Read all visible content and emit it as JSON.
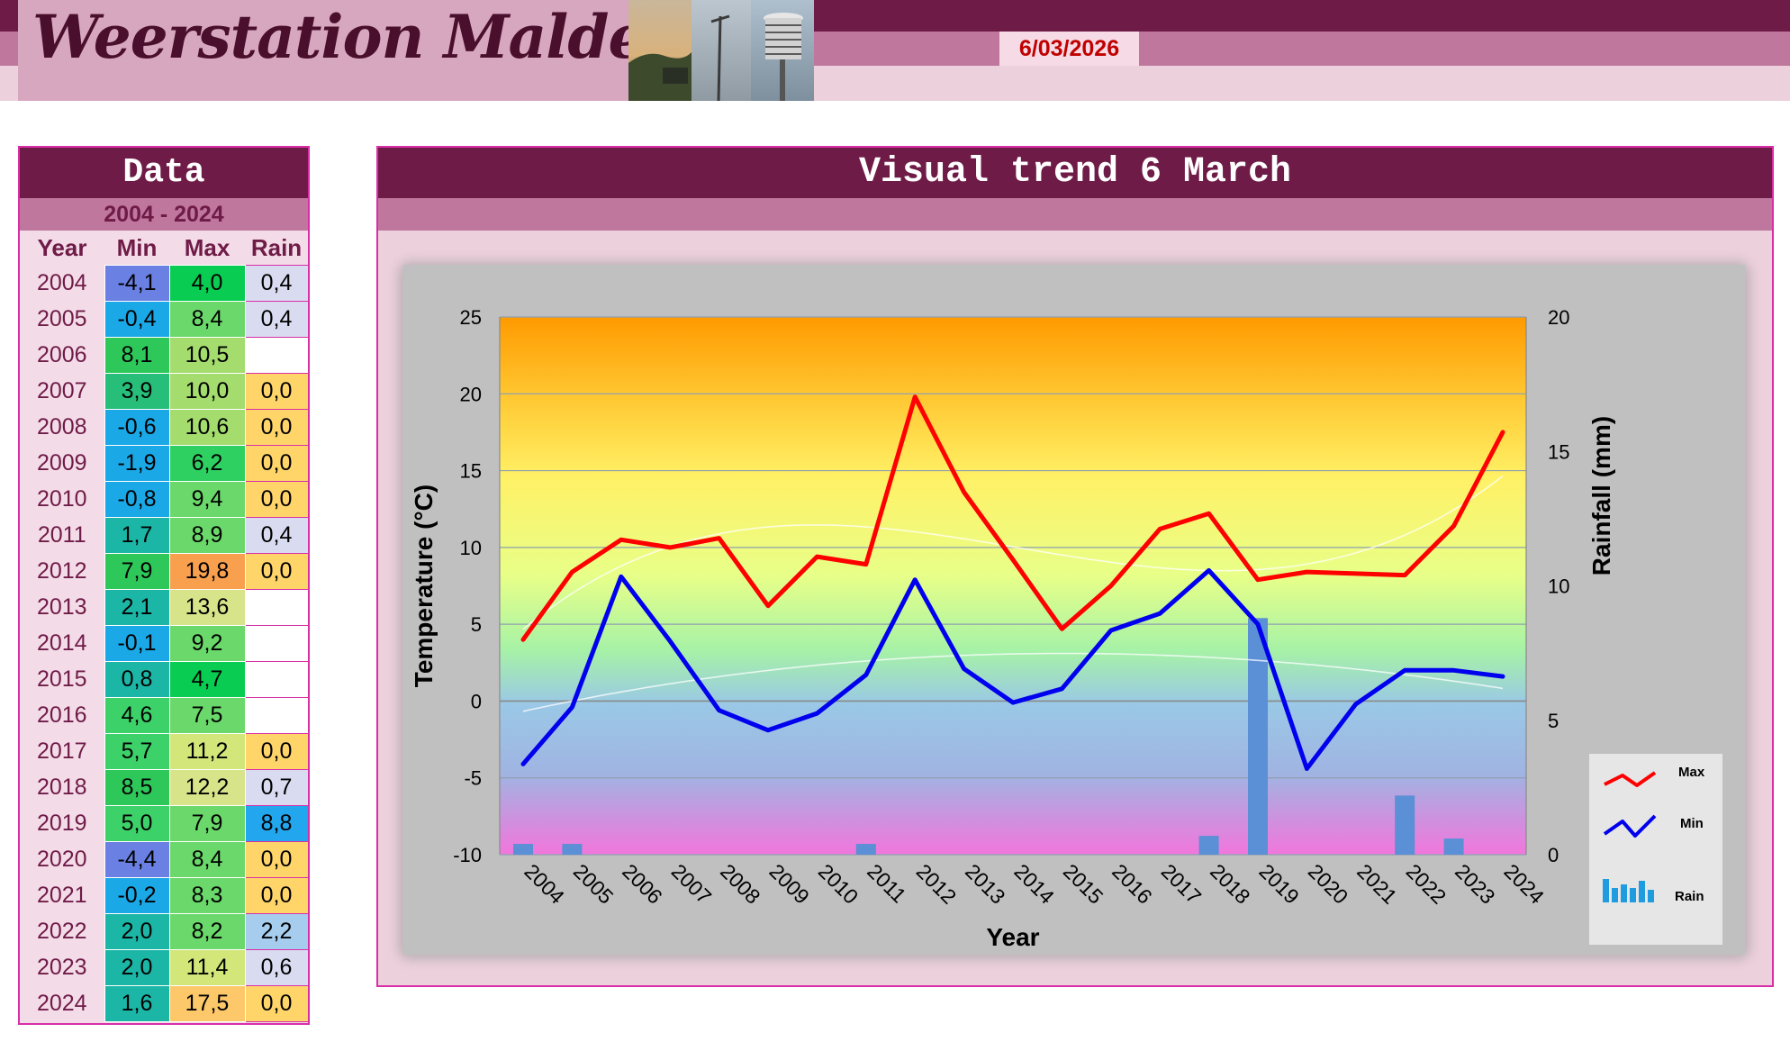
{
  "header": {
    "site_title": "Weerstation Malderen",
    "date": "6/03/2026",
    "photo_alt": "weather-station-photo"
  },
  "data_table": {
    "title": "Data",
    "range": "2004 - 2024",
    "columns": [
      "Year",
      "Min",
      "Max",
      "Rain"
    ],
    "rows": [
      {
        "year": "2004",
        "min": "-4,1",
        "max": "4,0",
        "rain": "0,4"
      },
      {
        "year": "2005",
        "min": "-0,4",
        "max": "8,4",
        "rain": "0,4"
      },
      {
        "year": "2006",
        "min": "8,1",
        "max": "10,5",
        "rain": ""
      },
      {
        "year": "2007",
        "min": "3,9",
        "max": "10,0",
        "rain": "0,0"
      },
      {
        "year": "2008",
        "min": "-0,6",
        "max": "10,6",
        "rain": "0,0"
      },
      {
        "year": "2009",
        "min": "-1,9",
        "max": "6,2",
        "rain": "0,0"
      },
      {
        "year": "2010",
        "min": "-0,8",
        "max": "9,4",
        "rain": "0,0"
      },
      {
        "year": "2011",
        "min": "1,7",
        "max": "8,9",
        "rain": "0,4"
      },
      {
        "year": "2012",
        "min": "7,9",
        "max": "19,8",
        "rain": "0,0"
      },
      {
        "year": "2013",
        "min": "2,1",
        "max": "13,6",
        "rain": ""
      },
      {
        "year": "2014",
        "min": "-0,1",
        "max": "9,2",
        "rain": ""
      },
      {
        "year": "2015",
        "min": "0,8",
        "max": "4,7",
        "rain": ""
      },
      {
        "year": "2016",
        "min": "4,6",
        "max": "7,5",
        "rain": ""
      },
      {
        "year": "2017",
        "min": "5,7",
        "max": "11,2",
        "rain": "0,0"
      },
      {
        "year": "2018",
        "min": "8,5",
        "max": "12,2",
        "rain": "0,7"
      },
      {
        "year": "2019",
        "min": "5,0",
        "max": "7,9",
        "rain": "8,8"
      },
      {
        "year": "2020",
        "min": "-4,4",
        "max": "8,4",
        "rain": "0,0"
      },
      {
        "year": "2021",
        "min": "-0,2",
        "max": "8,3",
        "rain": "0,0"
      },
      {
        "year": "2022",
        "min": "2,0",
        "max": "8,2",
        "rain": "2,2"
      },
      {
        "year": "2023",
        "min": "2,0",
        "max": "11,4",
        "rain": "0,6"
      },
      {
        "year": "2024",
        "min": "1,6",
        "max": "17,5",
        "rain": "0,0"
      }
    ]
  },
  "colors": {
    "header_dark": "#6f1b47",
    "header_mid": "#c0779d",
    "header_light": "#ecd0dc",
    "max_line": "#ff0000",
    "min_line": "#0000ee",
    "rain_bar": "#5b8fd6",
    "border": "#d82fa8"
  },
  "chart_data": {
    "type": "line",
    "title": "Visual trend 6 March",
    "xlabel": "Year",
    "ylabel": "Temperature (°C)",
    "y2label": "Rainfall (mm)",
    "ylim": [
      -10,
      25
    ],
    "y2lim": [
      0,
      20
    ],
    "yticks": [
      -10,
      -5,
      0,
      5,
      10,
      15,
      20,
      25
    ],
    "y2ticks": [
      0,
      5,
      10,
      15,
      20
    ],
    "grid": true,
    "legend_position": "right",
    "categories": [
      "2004",
      "2005",
      "2006",
      "2007",
      "2008",
      "2009",
      "2010",
      "2011",
      "2012",
      "2013",
      "2014",
      "2015",
      "2016",
      "2017",
      "2018",
      "2019",
      "2020",
      "2021",
      "2022",
      "2023",
      "2024"
    ],
    "series": [
      {
        "name": "Max",
        "type": "line",
        "axis": "left",
        "values": [
          4.0,
          8.4,
          10.5,
          10.0,
          10.6,
          6.2,
          9.4,
          8.9,
          19.8,
          13.6,
          9.2,
          4.7,
          7.5,
          11.2,
          12.2,
          7.9,
          8.4,
          8.3,
          8.2,
          11.4,
          17.5
        ]
      },
      {
        "name": "Min",
        "type": "line",
        "axis": "left",
        "values": [
          -4.1,
          -0.4,
          8.1,
          3.9,
          -0.6,
          -1.9,
          -0.8,
          1.7,
          7.9,
          2.1,
          -0.1,
          0.8,
          4.6,
          5.7,
          8.5,
          5.0,
          -4.4,
          -0.2,
          2.0,
          2.0,
          1.6
        ]
      },
      {
        "name": "Rain",
        "type": "bar",
        "axis": "right",
        "values": [
          0.4,
          0.4,
          null,
          0.0,
          0.0,
          0.0,
          0.0,
          0.4,
          0.0,
          null,
          null,
          null,
          null,
          0.0,
          0.7,
          8.8,
          0.0,
          0.0,
          2.2,
          0.6,
          0.0
        ]
      }
    ]
  }
}
